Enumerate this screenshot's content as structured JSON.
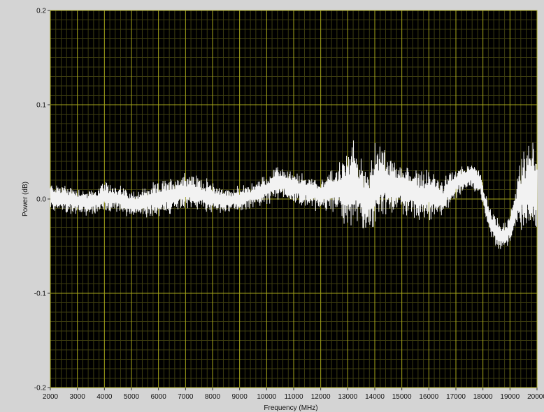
{
  "colors": {
    "frame_bg": "#d4d4d4",
    "plot_bg": "#000000",
    "major_grid": "#a6a61a",
    "minor_grid": "#3d3d10",
    "trace": "#f2f2f2",
    "text": "#111111"
  },
  "chart_data": {
    "type": "line",
    "title": "",
    "xlabel": "Frequency (MHz)",
    "ylabel": "Power (dB)",
    "xlim": [
      2000,
      20000
    ],
    "ylim": [
      -0.2,
      0.2
    ],
    "grid": true,
    "x_ticks": [
      2000,
      3000,
      4000,
      5000,
      6000,
      7000,
      8000,
      9000,
      10000,
      11000,
      12000,
      13000,
      14000,
      15000,
      16000,
      17000,
      18000,
      19000,
      20000
    ],
    "x_tick_labels": [
      "2000",
      "3000",
      "4000",
      "5000",
      "6000",
      "7000",
      "8000",
      "9000",
      "10000",
      "11000",
      "12000",
      "13000",
      "14000",
      "15000",
      "16000",
      "17000",
      "18000",
      "19000",
      "20000"
    ],
    "y_ticks": [
      -0.2,
      -0.1,
      0.0,
      0.1,
      0.2
    ],
    "y_tick_labels": [
      "-0.2",
      "-0.1",
      "0.0",
      "0.1",
      "0.2"
    ],
    "series": [
      {
        "color": "#f2f2f2",
        "x": [
          2000,
          2500,
          3000,
          3500,
          4000,
          4500,
          5000,
          5500,
          6000,
          6500,
          7000,
          7500,
          8000,
          8500,
          9000,
          9500,
          10000,
          10500,
          11000,
          11500,
          12000,
          12500,
          13000,
          13200,
          13500,
          13800,
          14000,
          14300,
          14600,
          15000,
          15500,
          16000,
          16500,
          17000,
          17500,
          17900,
          18200,
          18500,
          18800,
          19000,
          19300,
          19600,
          19800,
          20000
        ],
        "y": [
          0.003,
          0.0,
          -0.002,
          -0.004,
          0.002,
          0.0,
          -0.005,
          -0.003,
          0.0,
          0.004,
          0.008,
          0.006,
          0.002,
          -0.002,
          0.0,
          0.004,
          0.01,
          0.018,
          0.012,
          0.008,
          0.005,
          0.01,
          0.01,
          0.015,
          0.005,
          0.0,
          0.015,
          0.02,
          0.01,
          0.012,
          0.005,
          0.005,
          0.0,
          0.018,
          0.025,
          0.018,
          -0.02,
          -0.035,
          -0.04,
          -0.032,
          0.0,
          0.01,
          0.018,
          0.005
        ],
        "envelope": [
          0.015,
          0.018,
          0.016,
          0.015,
          0.018,
          0.018,
          0.015,
          0.018,
          0.02,
          0.022,
          0.025,
          0.02,
          0.018,
          0.015,
          0.015,
          0.015,
          0.018,
          0.02,
          0.018,
          0.02,
          0.02,
          0.025,
          0.045,
          0.055,
          0.04,
          0.035,
          0.05,
          0.045,
          0.035,
          0.03,
          0.03,
          0.03,
          0.022,
          0.018,
          0.015,
          0.015,
          0.015,
          0.018,
          0.015,
          0.018,
          0.035,
          0.05,
          0.055,
          0.045
        ]
      }
    ]
  }
}
